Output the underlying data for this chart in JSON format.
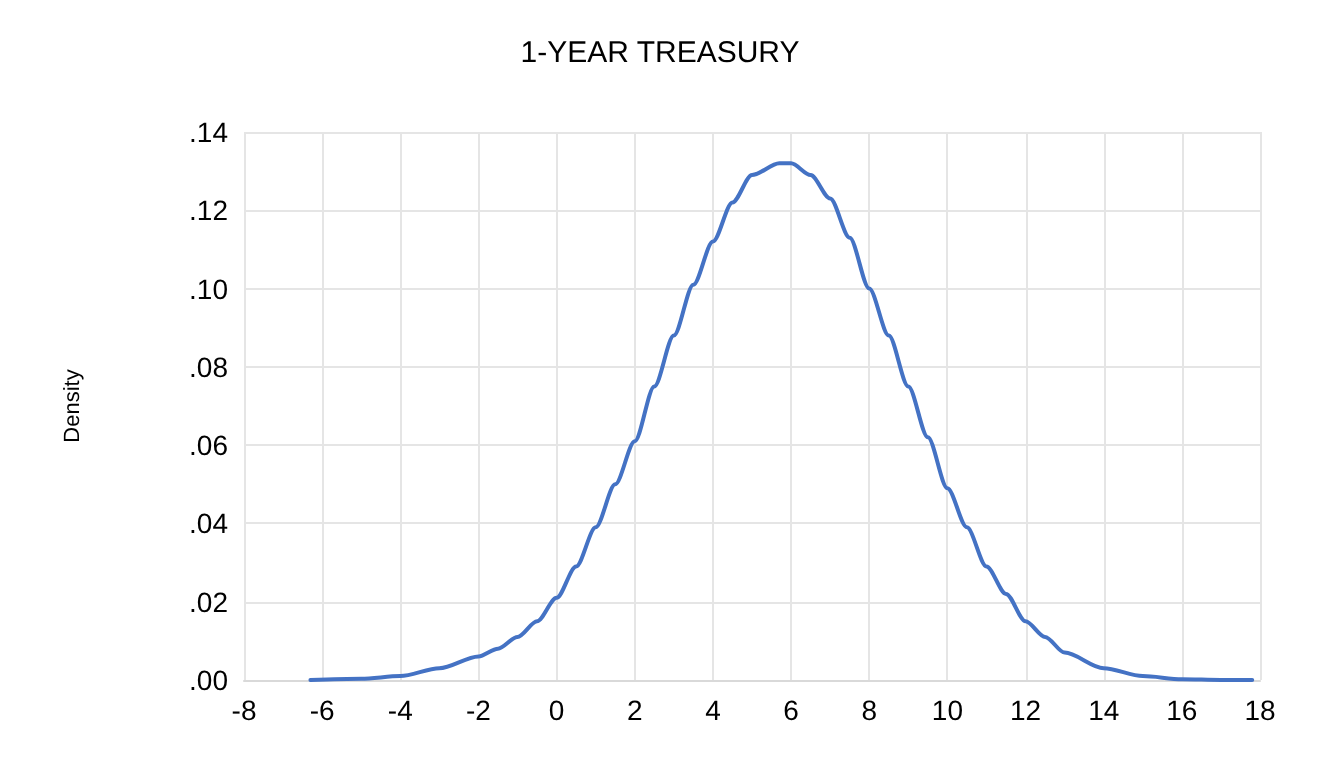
{
  "chart_data": {
    "type": "line",
    "title": "1-YEAR TREASURY",
    "ylabel": "Density",
    "x": [
      -6.3,
      -5,
      -4,
      -3,
      -2,
      -1.5,
      -1,
      -0.5,
      0,
      0.5,
      1,
      1.5,
      2,
      2.5,
      3,
      3.5,
      4,
      4.5,
      5,
      5.7,
      6,
      6.5,
      7,
      7.5,
      8,
      8.5,
      9,
      9.5,
      10,
      10.5,
      11,
      11.5,
      12,
      12.5,
      13,
      14,
      15,
      16,
      17,
      17.8
    ],
    "series": [
      {
        "color": "#4472c4",
        "values": [
          0,
          0.0003,
          0.001,
          0.003,
          0.006,
          0.008,
          0.011,
          0.015,
          0.021,
          0.029,
          0.039,
          0.05,
          0.061,
          0.075,
          0.088,
          0.101,
          0.112,
          0.122,
          0.129,
          0.132,
          0.132,
          0.129,
          0.123,
          0.113,
          0.1,
          0.088,
          0.075,
          0.062,
          0.049,
          0.039,
          0.029,
          0.022,
          0.015,
          0.011,
          0.007,
          0.003,
          0.001,
          0.0002,
          0,
          0
        ]
      }
    ],
    "xlim": [
      -8,
      18
    ],
    "xticks": [
      -8,
      -6,
      -4,
      -2,
      0,
      2,
      4,
      6,
      8,
      10,
      12,
      14,
      16,
      18
    ],
    "ylim": [
      0,
      0.14
    ],
    "yticks": [
      {
        "value": 0,
        "label": ".00"
      },
      {
        "value": 0.02,
        "label": ".02"
      },
      {
        "value": 0.04,
        "label": ".04"
      },
      {
        "value": 0.06,
        "label": ".06"
      },
      {
        "value": 0.08,
        "label": ".08"
      },
      {
        "value": 0.1,
        "label": ".10"
      },
      {
        "value": 0.12,
        "label": ".12"
      },
      {
        "value": 0.14,
        "label": ".14"
      }
    ],
    "grid": true,
    "marker": "none",
    "line_style": "solid"
  }
}
